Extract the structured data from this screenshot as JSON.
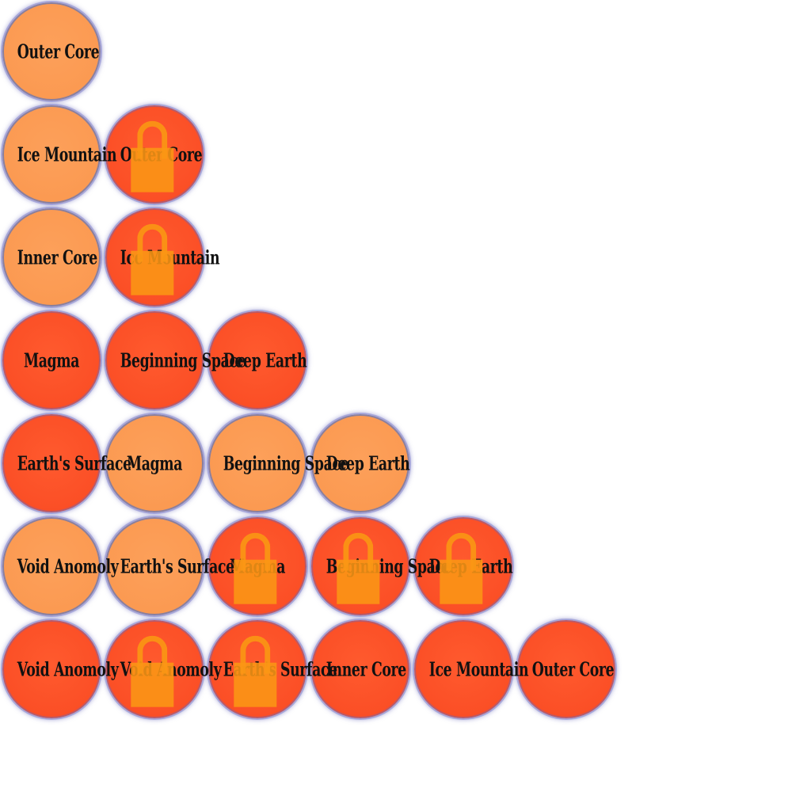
{
  "colors": {
    "unlocked_fill": "#fb9a52",
    "current_fill": "#fb4f26",
    "ring": "#8a7f9e",
    "lock": "#fa9614",
    "label": "#111111"
  },
  "rows": [
    [
      {
        "label": "Outer Core",
        "state": "light",
        "locked": false
      }
    ],
    [
      {
        "label": "Ice Mountain",
        "state": "light",
        "locked": false
      },
      {
        "label": "Outer Core",
        "state": "dark",
        "locked": true
      }
    ],
    [
      {
        "label": "Inner Core",
        "state": "light",
        "locked": false
      },
      {
        "label": "Ice Mountain",
        "state": "dark",
        "locked": true
      }
    ],
    [
      {
        "label": "Magma",
        "state": "dark",
        "locked": false
      },
      {
        "label": "Beginning Space",
        "state": "dark",
        "locked": false
      },
      {
        "label": "Deep Earth",
        "state": "dark",
        "locked": false
      }
    ],
    [
      {
        "label": "Earth's Surface",
        "state": "dark",
        "locked": false
      },
      {
        "label": "Magma",
        "state": "light",
        "locked": false
      },
      {
        "label": "Beginning Space",
        "state": "light",
        "locked": false
      },
      {
        "label": "Deep Earth",
        "state": "light",
        "locked": false
      }
    ],
    [
      {
        "label": "Void Anomoly",
        "state": "light",
        "locked": false
      },
      {
        "label": "Earth's Surface",
        "state": "light",
        "locked": false
      },
      {
        "label": "Magma",
        "state": "dark",
        "locked": true
      },
      {
        "label": "Beginning Space",
        "state": "dark",
        "locked": true
      },
      {
        "label": "Deep Earth",
        "state": "dark",
        "locked": true
      }
    ],
    [
      {
        "label": "Void Anomoly",
        "state": "dark",
        "locked": false
      },
      {
        "label": "Void Anomoly",
        "state": "dark",
        "locked": true
      },
      {
        "label": "Earth's Surface",
        "state": "dark",
        "locked": true
      },
      {
        "label": "Inner Core",
        "state": "dark",
        "locked": false
      },
      {
        "label": "Ice Mountain",
        "state": "dark",
        "locked": false
      },
      {
        "label": "Outer Core",
        "state": "dark",
        "locked": false
      }
    ]
  ]
}
